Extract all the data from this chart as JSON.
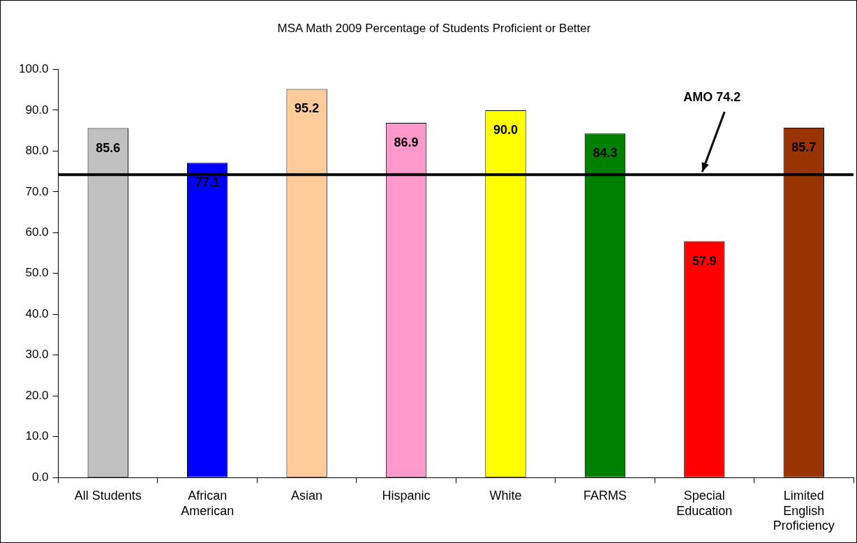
{
  "chart_data": {
    "type": "bar",
    "title": "MSA Math 2009 Percentage of Students Proficient or Better",
    "categories": [
      "All Students",
      "African American",
      "Asian",
      "Hispanic",
      "White",
      "FARMS",
      "Special Education",
      "Limited English Proficiency"
    ],
    "values": [
      85.6,
      77.1,
      95.2,
      86.9,
      90.0,
      84.3,
      57.9,
      85.7
    ],
    "value_labels": [
      "85.6",
      "77.1",
      "95.2",
      "86.9",
      "90.0",
      "84.3",
      "57.9",
      "85.7"
    ],
    "colors": [
      "#c0c0c0",
      "#0000ff",
      "#ffcc99",
      "#ff99cc",
      "#ffff00",
      "#008000",
      "#ff0000",
      "#993300"
    ],
    "ylim": [
      0,
      100
    ],
    "yticks": [
      {
        "value": 0,
        "label": "0.0"
      },
      {
        "value": 10,
        "label": "10.0"
      },
      {
        "value": 20,
        "label": "20.0"
      },
      {
        "value": 30,
        "label": "30.0"
      },
      {
        "value": 40,
        "label": "40.0"
      },
      {
        "value": 50,
        "label": "50.0"
      },
      {
        "value": 60,
        "label": "60.0"
      },
      {
        "value": 70,
        "label": "70.0"
      },
      {
        "value": 80,
        "label": "80.0"
      },
      {
        "value": 90,
        "label": "90.0"
      },
      {
        "value": 100,
        "label": "100.0"
      }
    ],
    "ref_lines": [
      {
        "axis": "y",
        "value": 74.2,
        "label": "AMO 74.2",
        "color": "#000000"
      }
    ],
    "grid": false,
    "legend": false
  }
}
